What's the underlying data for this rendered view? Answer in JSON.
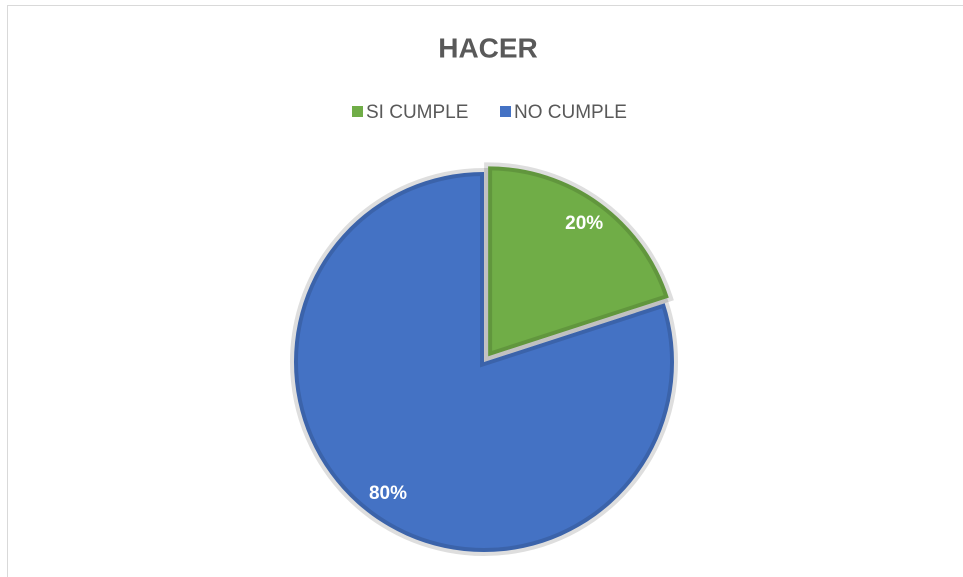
{
  "chart_data": {
    "type": "pie",
    "title": "HACER",
    "categories": [
      "SI CUMPLE",
      "NO CUMPLE"
    ],
    "values": [
      20,
      80
    ],
    "value_labels": [
      "20%",
      "80%"
    ],
    "colors": [
      "#70ad47",
      "#4472c4"
    ],
    "legend": "top"
  }
}
